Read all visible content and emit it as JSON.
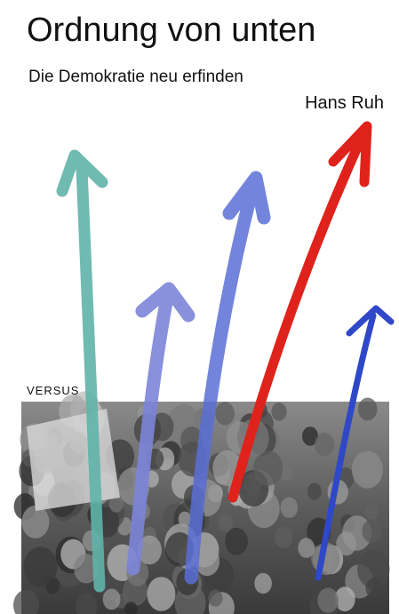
{
  "cover": {
    "title": "Ordnung von unten",
    "subtitle": "Die Demokratie neu erfinden",
    "author": "Hans Ruh",
    "publisher": "VERSUS"
  }
}
